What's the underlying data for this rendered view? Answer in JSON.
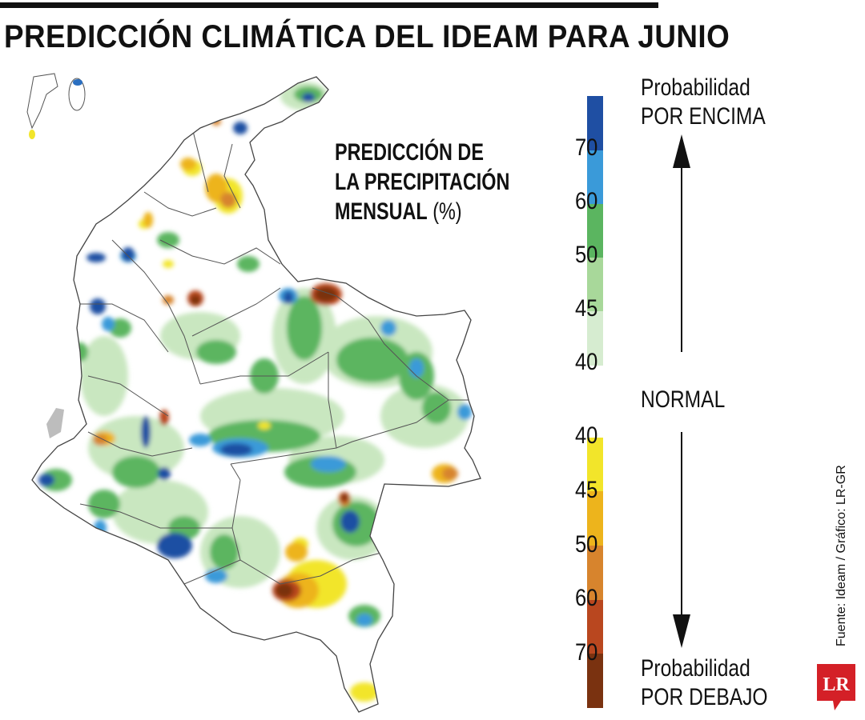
{
  "header": {
    "title": "PREDICCIÓN CLIMÁTICA DEL IDEAM PARA JUNIO"
  },
  "map": {
    "subtitle_line1": "PREDICCIÓN DE",
    "subtitle_line2": "LA PRECIPITACIÓN",
    "subtitle_line3_bold": "MENSUAL",
    "subtitle_line3_unit": " (%)"
  },
  "legend": {
    "above": {
      "label_line1": "Probabilidad",
      "label_line2": "POR ENCIMA",
      "ticks": [
        "70",
        "60",
        "50",
        "45",
        "40"
      ],
      "colors": [
        "#1f4fa3",
        "#3a9ad9",
        "#5bb560",
        "#a8d89a",
        "#d6ecd0"
      ]
    },
    "normal_label": "NORMAL",
    "below": {
      "label_line1": "Probabilidad",
      "label_line2": "POR DEBAJO",
      "ticks": [
        "40",
        "45",
        "50",
        "60",
        "70"
      ],
      "colors": [
        "#f2e52a",
        "#edb41c",
        "#d7842d",
        "#b9471f",
        "#7a3210"
      ]
    }
  },
  "footer": {
    "source": "Fuente: Ideam / Gráfico: LR-GR",
    "logo_text": "LR",
    "logo_color": "#d42027"
  }
}
